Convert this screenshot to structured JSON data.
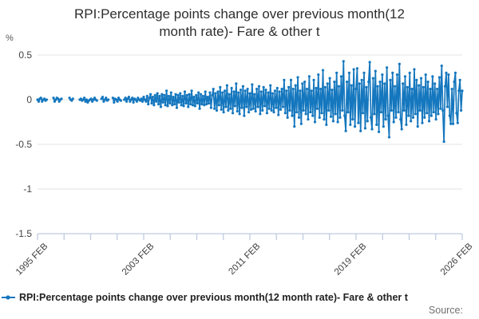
{
  "title": {
    "line1": "RPI:Percentage points change over previous month(12",
    "line2": "month rate)- Fare & other t"
  },
  "y_axis": {
    "unit_label": "%"
  },
  "legend": {
    "label": "RPI:Percentage points change over previous month(12 month rate)- Fare & other t"
  },
  "source": {
    "label": "Source:"
  },
  "colors": {
    "line": "#1577be",
    "grid": "#e3e3e3",
    "axis": "#bfcbe0",
    "title_text": "#2e2e2e",
    "tick_text": "#414141",
    "source_text": "#707070"
  },
  "chart_data": {
    "type": "line",
    "title": "RPI:Percentage points change over previous month(12 month rate)- Fare & other t",
    "xlabel": "",
    "ylabel": "%",
    "ylim": [
      -1.5,
      0.5
    ],
    "grid": true,
    "legend_position": "bottom",
    "marker": "circle",
    "x_start": "1995 FEB",
    "x_end": "2026 FEB",
    "frequency": "monthly",
    "num_ticks": 17,
    "yticks": [
      {
        "label": "0.5",
        "value": 0.5
      },
      {
        "label": "0",
        "value": 0
      },
      {
        "label": "-0.5",
        "value": -0.5
      },
      {
        "label": "-1",
        "value": -1
      },
      {
        "label": "-1.5",
        "value": -1.5
      }
    ],
    "xticks": [
      {
        "label": "1995 FEB",
        "tick": 0
      },
      {
        "label": "2003 FEB",
        "tick": 4
      },
      {
        "label": "2011 FEB",
        "tick": 8
      },
      {
        "label": "2019 FEB",
        "tick": 12
      },
      {
        "label": "2026 FEB",
        "tick": 16
      }
    ],
    "series": [
      {
        "name": "RPI:Percentage points change over previous month(12 month rate)- Fare & other t",
        "values": [
          0,
          -0.02,
          0.01,
          0.02,
          -0.02,
          0,
          0.01,
          -0.01,
          0,
          null,
          null,
          null,
          null,
          null,
          0.02,
          -0.02,
          0,
          0.02,
          0.01,
          -0.02,
          0,
          0.01,
          null,
          null,
          null,
          null,
          null,
          null,
          0.02,
          0,
          -0.01,
          0.01,
          null,
          null,
          null,
          null,
          null,
          0,
          0.01,
          -0.01,
          0,
          0.02,
          -0.02,
          0,
          -0.03,
          -0.01,
          0,
          0.01,
          -0.02,
          0,
          0.02,
          0,
          -0.01,
          null,
          null,
          null,
          0.01,
          0.03,
          -0.02,
          0,
          0.02,
          -0.01,
          0,
          null,
          null,
          null,
          0.02,
          -0.03,
          0.01,
          0,
          -0.02,
          0.02,
          0,
          -0.01,
          null,
          null,
          0,
          0.02,
          -0.02,
          0.01,
          0.03,
          -0.02,
          0,
          0.02,
          -0.03,
          0.01,
          0,
          -0.02,
          0.02,
          0,
          -0.01,
          0.01,
          -0.02,
          0.03,
          0,
          -0.02,
          0.04,
          -0.05,
          0.02,
          0.06,
          -0.04,
          0.03,
          -0.06,
          0.05,
          -0.02,
          0.07,
          -0.05,
          0.04,
          -0.08,
          0.06,
          -0.03,
          0.05,
          -0.06,
          0.1,
          -0.07,
          0.04,
          -0.04,
          0.08,
          -0.06,
          0.03,
          -0.05,
          0.06,
          -0.09,
          0.05,
          -0.03,
          0.07,
          -0.06,
          0.04,
          -0.07,
          0.09,
          -0.04,
          0.05,
          -0.08,
          0.06,
          -0.05,
          0.1,
          -0.06,
          0.03,
          -0.07,
          0.05,
          -0.04,
          0.08,
          -0.1,
          0.06,
          -0.05,
          0.04,
          -0.06,
          0.09,
          -0.05,
          0.03,
          -0.04,
          0.08,
          -0.09,
          0.05,
          0.12,
          -0.1,
          0.07,
          -0.12,
          0.09,
          -0.06,
          0.14,
          -0.11,
          0.08,
          -0.14,
          0.1,
          -0.08,
          0.16,
          -0.12,
          0.06,
          -0.1,
          0.13,
          -0.15,
          0.09,
          -0.07,
          0.18,
          -0.13,
          0.08,
          -0.16,
          0.11,
          -0.09,
          0.15,
          -0.18,
          0.1,
          -0.08,
          0.12,
          -0.14,
          0.07,
          -0.11,
          0.17,
          -0.1,
          0.06,
          -0.13,
          0.12,
          -0.08,
          0.15,
          -0.16,
          0.09,
          -0.12,
          0.14,
          -0.07,
          0.11,
          -0.15,
          0.08,
          -0.1,
          0.16,
          -0.12,
          0.07,
          -0.14,
          0.1,
          -0.09,
          0.13,
          -0.17,
          0.09,
          -0.11,
          0.12,
          -0.08,
          0.22,
          -0.15,
          0.1,
          -0.2,
          0.14,
          -0.12,
          0.22,
          -0.18,
          0.12,
          -0.3,
          0.16,
          -0.14,
          0.25,
          -0.2,
          0.1,
          -0.27,
          0.18,
          -0.12,
          0.2,
          -0.16,
          0.12,
          -0.22,
          0.26,
          -0.14,
          0.1,
          -0.18,
          0.22,
          -0.25,
          0.13,
          -0.1,
          0.28,
          -0.2,
          0.12,
          -0.15,
          0.33,
          -0.22,
          0.14,
          -0.28,
          0.18,
          -0.12,
          0.24,
          -0.19,
          0.11,
          -0.24,
          0.2,
          -0.16,
          0.3,
          -0.25,
          0.15,
          -0.2,
          0.26,
          -0.12,
          0.43,
          -0.18,
          -0.35,
          0.2,
          -0.14,
          0.3,
          -0.28,
          0.16,
          -0.22,
          0.34,
          -0.3,
          0.12,
          0.35,
          -0.26,
          0.18,
          -0.35,
          0.22,
          -0.15,
          0.3,
          -0.32,
          0.14,
          -0.24,
          0.2,
          0.42,
          -0.2,
          -0.33,
          0.24,
          -0.16,
          0.32,
          -0.28,
          0.15,
          -0.36,
          0.2,
          -0.14,
          0.28,
          -0.3,
          0.18,
          -0.22,
          0.36,
          -0.18,
          -0.42,
          0.22,
          -0.12,
          0.3,
          -0.25,
          0.15,
          -0.2,
          0.28,
          -0.14,
          0.4,
          -0.22,
          -0.33,
          0.18,
          -0.12,
          0.26,
          -0.28,
          0.14,
          -0.18,
          0.3,
          -0.24,
          0.12,
          -0.2,
          0.34,
          -0.16,
          0.22,
          -0.3,
          0.16,
          -0.12,
          0.24,
          -0.26,
          0.14,
          -0.2,
          0.28,
          -0.15,
          0.2,
          -0.24,
          0.12,
          -0.18,
          0.26,
          -0.14,
          0.18,
          -0.22,
          0.12,
          -0.16,
          0.25,
          -0.1,
          0.38,
          -0.12,
          -0.47,
          0.15,
          0.3,
          -0.08,
          0.28,
          -0.18,
          -0.27,
          0.12,
          -0.27,
          0.2,
          0.3,
          -0.15,
          -0.26,
          0.1,
          0.22,
          -0.12,
          0.1
        ]
      }
    ]
  }
}
